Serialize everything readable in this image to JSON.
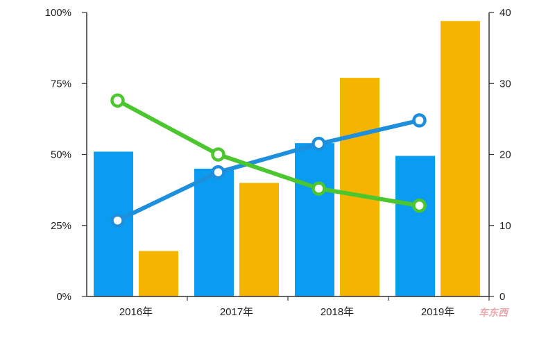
{
  "chart_data": {
    "type": "bar",
    "categories": [
      "2016年",
      "2017年",
      "2018年",
      "2019年"
    ],
    "left_axis": {
      "ticks": [
        "0%",
        "25%",
        "50%",
        "75%",
        "100%"
      ],
      "range": [
        0,
        100
      ]
    },
    "right_axis": {
      "ticks": [
        "0",
        "10",
        "20",
        "30",
        "40"
      ],
      "range": [
        0,
        40
      ]
    },
    "bar_series": [
      {
        "color": "#0a9cf0",
        "axis": "left",
        "values": [
          51,
          45,
          54,
          49.5
        ]
      },
      {
        "color": "#f5b400",
        "axis": "left",
        "values": [
          16,
          40,
          77,
          97
        ]
      }
    ],
    "line_series": [
      {
        "color": "#1e8fdc",
        "axis": "right",
        "values": [
          10.7,
          17.5,
          21.5,
          24.8
        ]
      },
      {
        "color": "#4cc62f",
        "axis": "right",
        "values": [
          27.6,
          20,
          15.2,
          12.8
        ]
      }
    ],
    "grid": false,
    "legend": "none"
  },
  "watermark": {
    "text": "车东西"
  }
}
